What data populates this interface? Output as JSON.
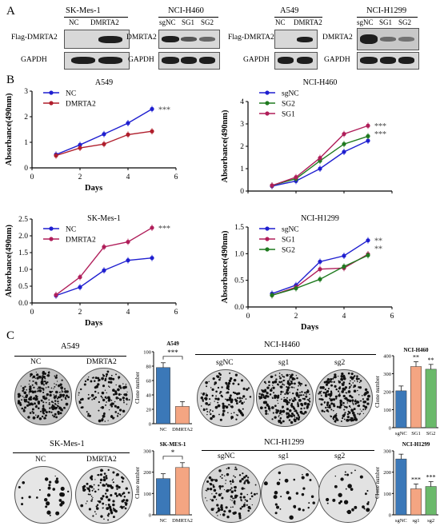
{
  "panels": {
    "A": "A",
    "B": "B",
    "C": "C"
  },
  "blots": [
    {
      "title": "SK-Mes-1",
      "lanes": [
        "NC",
        "DMRTA2"
      ],
      "row1": "Flag-DMRTA2",
      "row2": "GAPDH"
    },
    {
      "title": "NCI-H460",
      "lanes": [
        "sgNC",
        "SG1",
        "SG2"
      ],
      "row1": "DMRTA2",
      "row2": "GAPDH"
    },
    {
      "title": "A549",
      "lanes": [
        "NC",
        "DMRTA2"
      ],
      "row1": "Flag-DMRTA2",
      "row2": "GAPDH"
    },
    {
      "title": "NCI-H1299",
      "lanes": [
        "sgNC",
        "SG1",
        "SG2"
      ],
      "row1": "DMRTA2",
      "row2": "GAPDH"
    }
  ],
  "chart_data": [
    {
      "type": "line",
      "title": "A549",
      "xlabel": "Days",
      "ylabel": "Absorbance(490nm)",
      "xlim": [
        0,
        6
      ],
      "ylim": [
        0,
        3
      ],
      "xticks": [
        0,
        2,
        4,
        6
      ],
      "yticks": [
        0,
        1,
        2,
        3
      ],
      "x": [
        1,
        2,
        3,
        4,
        5
      ],
      "legend": "top-left",
      "annotation": "***",
      "series": [
        {
          "name": "NC",
          "color": "#1f1fd0",
          "values": [
            0.52,
            0.9,
            1.32,
            1.75,
            2.3
          ]
        },
        {
          "name": "DMRTA2",
          "color": "#b01e2c",
          "values": [
            0.48,
            0.78,
            0.93,
            1.3,
            1.43
          ]
        }
      ]
    },
    {
      "type": "line",
      "title": "NCI-H460",
      "xlabel": "Days",
      "ylabel": "Absorbance(490nm)",
      "xlim": [
        0,
        6
      ],
      "ylim": [
        0,
        4
      ],
      "xticks": [
        0,
        2,
        4,
        6
      ],
      "yticks": [
        0,
        1,
        2,
        3,
        4
      ],
      "x": [
        1,
        2,
        3,
        4,
        5
      ],
      "legend": "top-left",
      "annotation": "***\n***",
      "series": [
        {
          "name": "sgNC",
          "color": "#1f1fd0",
          "values": [
            0.22,
            0.45,
            1.0,
            1.75,
            2.25
          ]
        },
        {
          "name": "SG2",
          "color": "#1f7a1f",
          "values": [
            0.25,
            0.55,
            1.35,
            2.1,
            2.45
          ]
        },
        {
          "name": "SG1",
          "color": "#b01e5a",
          "values": [
            0.25,
            0.62,
            1.48,
            2.55,
            2.92
          ]
        }
      ]
    },
    {
      "type": "line",
      "title": "SK-Mes-1",
      "xlabel": "Days",
      "ylabel": "Absorbance(490nm)",
      "xlim": [
        0,
        6
      ],
      "ylim": [
        0,
        2.5
      ],
      "xticks": [
        0,
        2,
        4,
        6
      ],
      "yticks": [
        0,
        0.5,
        1.0,
        1.5,
        2.0,
        2.5
      ],
      "x": [
        1,
        2,
        3,
        4,
        5
      ],
      "legend": "top-left",
      "annotation": "***",
      "series": [
        {
          "name": "NC",
          "color": "#1f1fd0",
          "values": [
            0.22,
            0.47,
            0.97,
            1.27,
            1.34
          ]
        },
        {
          "name": "DMRTA2",
          "color": "#b01e5a",
          "values": [
            0.24,
            0.77,
            1.67,
            1.82,
            2.24
          ]
        }
      ]
    },
    {
      "type": "line",
      "title": "NCI-H1299",
      "xlabel": "Days",
      "ylabel": "Absorbance(490nm)",
      "xlim": [
        0,
        6
      ],
      "ylim": [
        0,
        1.5
      ],
      "xticks": [
        0,
        2,
        4,
        6
      ],
      "yticks": [
        0,
        0.5,
        1.0,
        1.5
      ],
      "x": [
        1,
        2,
        3,
        4,
        5
      ],
      "legend": "top-left",
      "annotation": "**\n**",
      "series": [
        {
          "name": "sgNC",
          "color": "#1f1fd0",
          "values": [
            0.25,
            0.41,
            0.85,
            0.96,
            1.25
          ]
        },
        {
          "name": "SG1",
          "color": "#b01e5a",
          "values": [
            0.22,
            0.37,
            0.71,
            0.73,
            0.99
          ]
        },
        {
          "name": "SG2",
          "color": "#1f7a1f",
          "values": [
            0.22,
            0.35,
            0.52,
            0.76,
            0.97
          ]
        }
      ]
    },
    {
      "type": "bar",
      "title": "A549",
      "ylabel": "Clone number",
      "ylim": [
        0,
        100
      ],
      "yticks": [
        0,
        20,
        40,
        60,
        80,
        100
      ],
      "categories": [
        "NC",
        "DMRTA2"
      ],
      "values": [
        78,
        24
      ],
      "colors": [
        "#3b78b8",
        "#f4a582"
      ],
      "annotation": "***"
    },
    {
      "type": "bar",
      "title": "NCI-H460",
      "ylabel": "Clone number",
      "ylim": [
        0,
        400
      ],
      "yticks": [
        0,
        100,
        200,
        300,
        400
      ],
      "categories": [
        "sgNC",
        "SG1",
        "SG2"
      ],
      "values": [
        205,
        340,
        325
      ],
      "colors": [
        "#3b78b8",
        "#f4a582",
        "#6ab96a"
      ],
      "annotation": [
        "",
        "**",
        "**"
      ]
    },
    {
      "type": "bar",
      "title": "SK-MES-1",
      "ylabel": "Clone number",
      "ylim": [
        0,
        300
      ],
      "yticks": [
        0,
        100,
        200,
        300
      ],
      "categories": [
        "NC",
        "DMRTA2"
      ],
      "values": [
        170,
        222
      ],
      "colors": [
        "#3b78b8",
        "#f4a582"
      ],
      "annotation": "*"
    },
    {
      "type": "bar",
      "title": "NCI-H1299",
      "ylabel": "Clone number",
      "ylim": [
        0,
        300
      ],
      "yticks": [
        0,
        100,
        200,
        300
      ],
      "categories": [
        "sgNC",
        "sg1",
        "sg2"
      ],
      "values": [
        262,
        122,
        133
      ],
      "colors": [
        "#3b78b8",
        "#f4a582",
        "#6ab96a"
      ],
      "annotation": [
        "",
        "***",
        "***"
      ]
    }
  ],
  "colonies": [
    {
      "title": "A549",
      "dishes": [
        "NC",
        "DMRTA2"
      ],
      "densities": [
        1.0,
        0.55
      ]
    },
    {
      "title": "NCI-H460",
      "dishes": [
        "sgNC",
        "sg1",
        "sg2"
      ],
      "densities": [
        0.55,
        1.0,
        0.95
      ]
    },
    {
      "title": "SK-Mes-1",
      "dishes": [
        "NC",
        "DMRTA2"
      ],
      "densities": [
        0.12,
        0.5
      ]
    },
    {
      "title": "NCI-H1299",
      "dishes": [
        "sgNC",
        "sg1",
        "sg2"
      ],
      "densities": [
        0.55,
        0.12,
        0.12
      ]
    }
  ]
}
